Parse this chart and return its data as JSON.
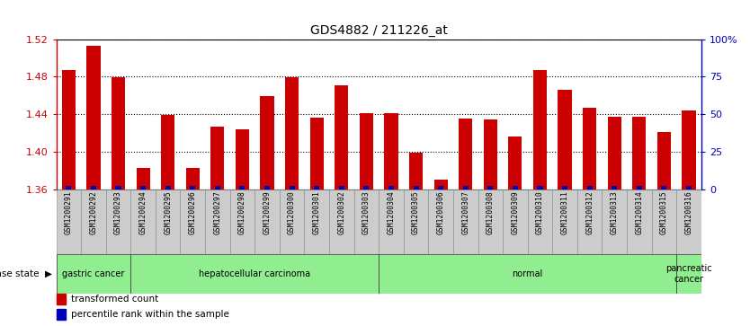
{
  "title": "GDS4882 / 211226_at",
  "samples": [
    "GSM1200291",
    "GSM1200292",
    "GSM1200293",
    "GSM1200294",
    "GSM1200295",
    "GSM1200296",
    "GSM1200297",
    "GSM1200298",
    "GSM1200299",
    "GSM1200300",
    "GSM1200301",
    "GSM1200302",
    "GSM1200303",
    "GSM1200304",
    "GSM1200305",
    "GSM1200306",
    "GSM1200307",
    "GSM1200308",
    "GSM1200309",
    "GSM1200310",
    "GSM1200311",
    "GSM1200312",
    "GSM1200313",
    "GSM1200314",
    "GSM1200315",
    "GSM1200316"
  ],
  "values": [
    1.487,
    1.513,
    1.479,
    1.383,
    1.439,
    1.383,
    1.427,
    1.424,
    1.459,
    1.479,
    1.436,
    1.471,
    1.441,
    1.441,
    1.399,
    1.37,
    1.435,
    1.434,
    1.416,
    1.487,
    1.466,
    1.447,
    1.437,
    1.437,
    1.421,
    1.444
  ],
  "ymin": 1.36,
  "ymax": 1.52,
  "yticks_left": [
    1.36,
    1.4,
    1.44,
    1.48,
    1.52
  ],
  "ytick_labels_left": [
    "1.36",
    "1.40",
    "1.44",
    "1.48",
    "1.52"
  ],
  "yticks_right": [
    0,
    25,
    50,
    75,
    100
  ],
  "ytick_labels_right": [
    "0",
    "25",
    "50",
    "75",
    "100%"
  ],
  "bar_color": "#cc0000",
  "blue_color": "#0000bb",
  "left_axis_color": "#cc0000",
  "right_axis_color": "#0000bb",
  "bar_width": 0.55,
  "disease_groups": [
    {
      "label": "gastric cancer",
      "start": 0,
      "end": 3
    },
    {
      "label": "hepatocellular carcinoma",
      "start": 3,
      "end": 13
    },
    {
      "label": "normal",
      "start": 13,
      "end": 25
    },
    {
      "label": "pancreatic\ncancer",
      "start": 25,
      "end": 26
    }
  ],
  "group_color": "#90ee90",
  "group_border_color": "#444444",
  "legend_red_label": "transformed count",
  "legend_blue_label": "percentile rank within the sample",
  "xtick_bg": "#cccccc",
  "xtick_border": "#888888"
}
